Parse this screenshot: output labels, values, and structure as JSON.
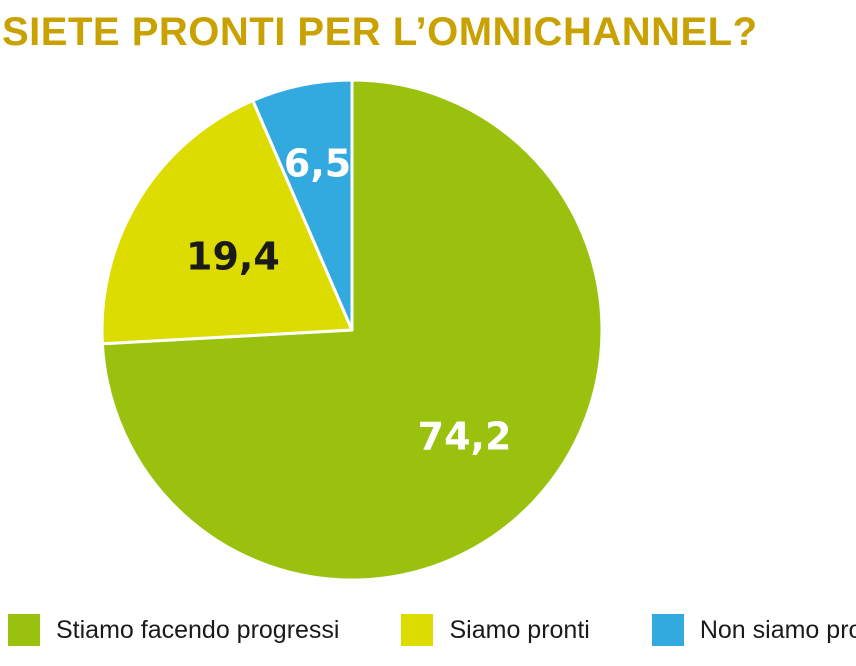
{
  "chart_data": {
    "type": "pie",
    "title": "SIETE PRONTI PER L’OMNICHANNEL?",
    "categories": [
      "Stiamo facendo progressi",
      "Siamo pronti",
      "Non siamo pronti"
    ],
    "values": [
      74.2,
      19.4,
      6.5
    ],
    "value_labels": [
      "74,2",
      "19,4",
      "6,5"
    ],
    "colors": [
      "#99c10e",
      "#dcdc00",
      "#33aadf"
    ],
    "label_colors": [
      "#ffffff",
      "#1a1a1a",
      "#ffffff"
    ],
    "start": "12 o'clock",
    "direction": "clockwise",
    "legend_position": "bottom"
  }
}
